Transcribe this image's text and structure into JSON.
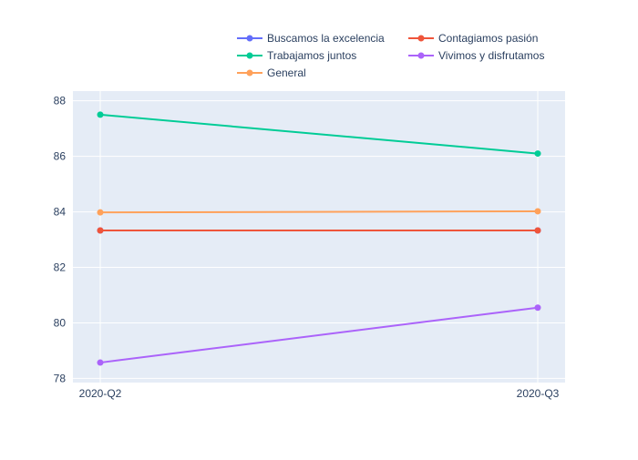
{
  "chart_data": {
    "type": "line",
    "title": "",
    "xlabel": "",
    "ylabel": "",
    "categories": [
      "2020-Q2",
      "2020-Q3"
    ],
    "ylim": [
      78,
      88
    ],
    "yticks": [
      78,
      80,
      82,
      84,
      86,
      88
    ],
    "grid": true,
    "legend_position": "top-right",
    "series": [
      {
        "name": "Buscamos la excelencia",
        "color": "#636efa",
        "values": [
          83.33,
          83.33
        ]
      },
      {
        "name": "Contagiamos pasión",
        "color": "#ef553b",
        "values": [
          83.33,
          83.33
        ]
      },
      {
        "name": "Trabajamos juntos",
        "color": "#00cc96",
        "values": [
          87.5,
          86.1
        ]
      },
      {
        "name": "Vivimos y disfrutamos",
        "color": "#ab63fa",
        "values": [
          78.57,
          80.55
        ]
      },
      {
        "name": "General",
        "color": "#ffa15a",
        "values": [
          83.98,
          84.02
        ]
      }
    ]
  }
}
